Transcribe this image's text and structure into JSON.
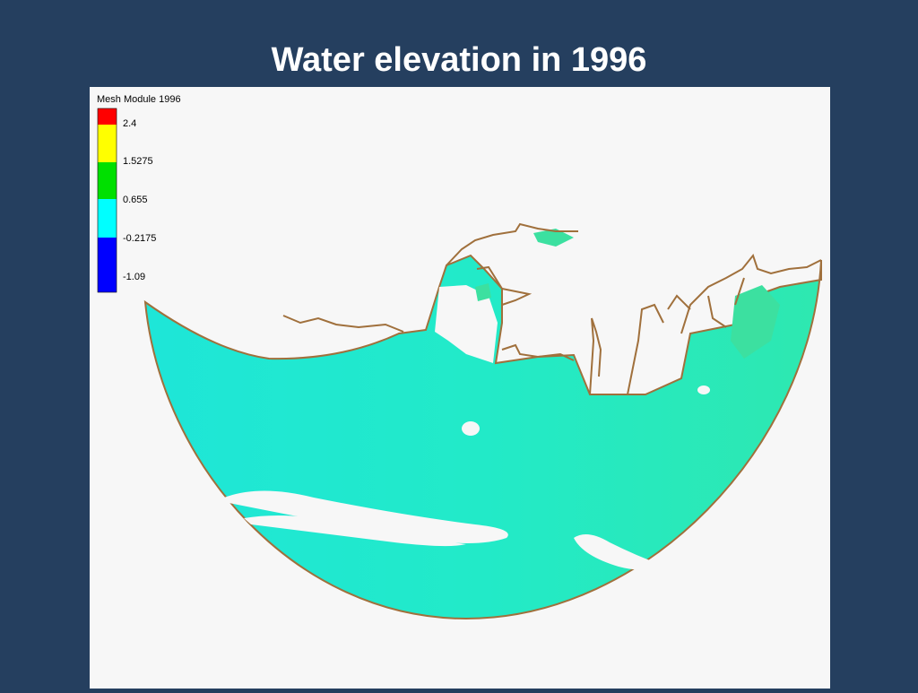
{
  "header": {
    "title": "Water elevation in 1996"
  },
  "legend": {
    "title": "Mesh Module 1996",
    "labels": [
      "2.4",
      "1.5275",
      "0.655",
      "-0.2175",
      "-1.09"
    ]
  }
}
